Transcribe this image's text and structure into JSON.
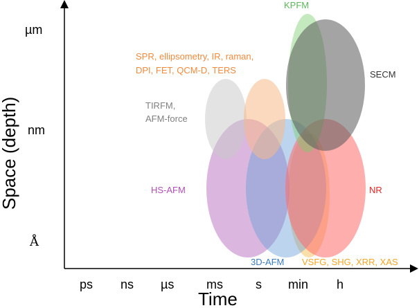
{
  "axes": {
    "x_title": "Time",
    "y_title": "Space (depth)",
    "x_ticks": [
      "ps",
      "ns",
      "µs",
      "ms",
      "s",
      "min",
      "h"
    ],
    "y_ticks": [
      "µm",
      "nm",
      "Å"
    ]
  },
  "techniques": {
    "kpfm": {
      "label": "KPFM",
      "color": "#5cb85c"
    },
    "secm": {
      "label": "SECM",
      "color": "#555555"
    },
    "spr": {
      "line1": "SPR, ellipsometry, IR, raman,",
      "line2": "DPI, FET, QCM-D, TERS",
      "color": "#f08a3c"
    },
    "tirfm": {
      "line1": "TIRFM,",
      "line2": "AFM-force",
      "color": "#808080"
    },
    "hsafm": {
      "label": "HS-AFM",
      "color": "#b14fb5"
    },
    "afm3d": {
      "label": "3D-AFM",
      "color": "#3b7bbf"
    },
    "nr": {
      "label": "NR",
      "color": "#ee2222"
    },
    "vsfg": {
      "label": "VSFG, SHG, XRR, XAS",
      "color": "#f5a623"
    }
  }
}
